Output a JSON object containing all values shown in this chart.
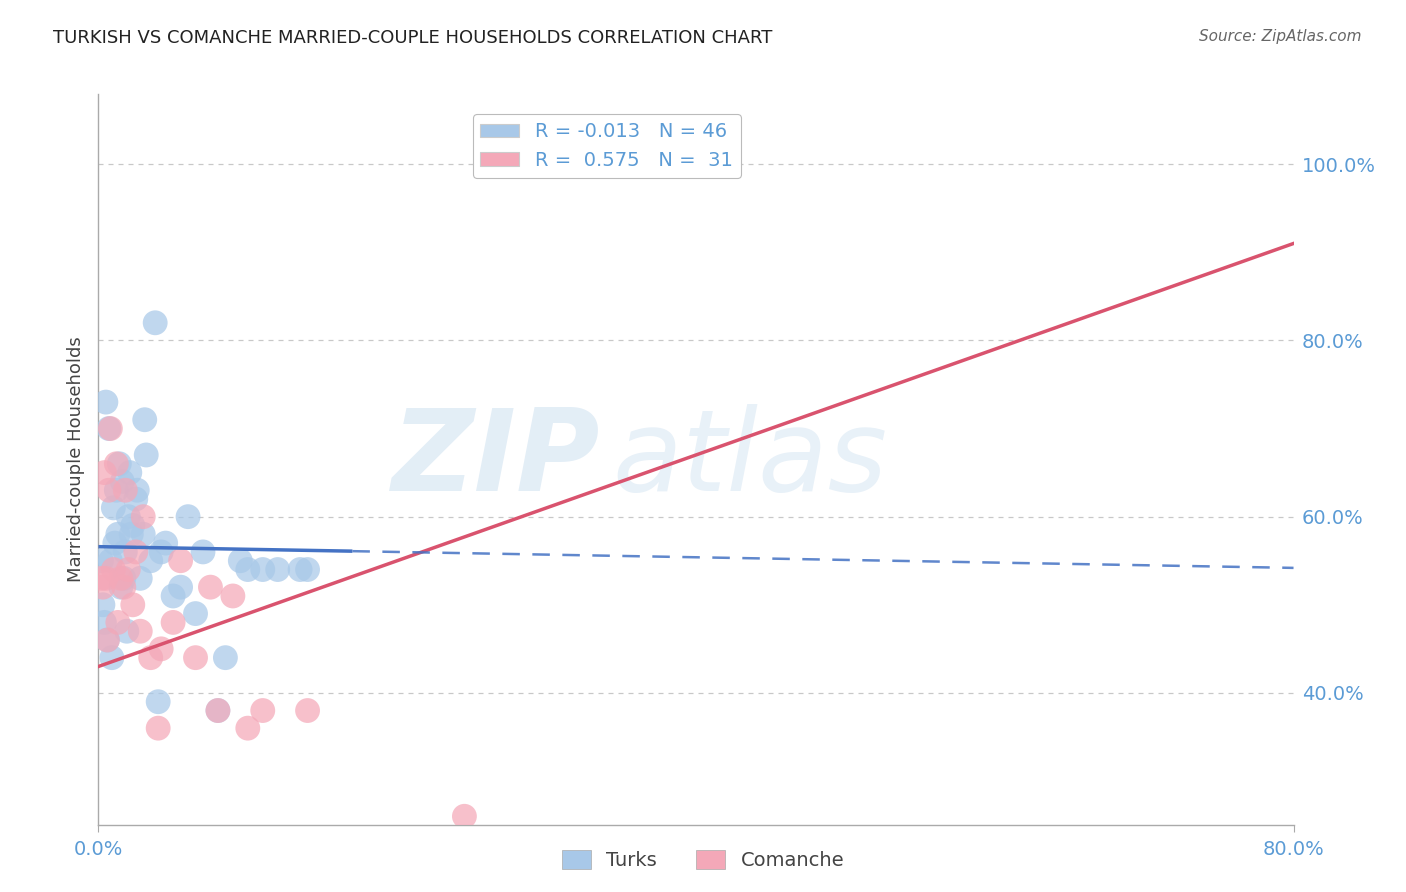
{
  "title": "TURKISH VS COMANCHE MARRIED-COUPLE HOUSEHOLDS CORRELATION CHART",
  "source": "Source: ZipAtlas.com",
  "ylabel": "Married-couple Households",
  "turks_R": -0.013,
  "turks_N": 46,
  "comanche_R": 0.575,
  "comanche_N": 31,
  "turks_color": "#a8c8e8",
  "comanche_color": "#f4a8b8",
  "turks_line_color": "#4472c4",
  "comanche_line_color": "#d9536e",
  "background_color": "#ffffff",
  "grid_color": "#c8c8c8",
  "axis_label_color": "#5b9bd5",
  "watermark_zip": "ZIP",
  "watermark_atlas": "atlas",
  "turks_x": [
    0.5,
    0.8,
    1.0,
    1.1,
    1.2,
    1.3,
    1.5,
    1.6,
    1.8,
    2.0,
    2.1,
    2.3,
    2.5,
    2.8,
    3.0,
    3.2,
    3.5,
    4.0,
    4.5,
    5.0,
    6.0,
    7.0,
    8.0,
    9.5,
    10.0,
    12.0,
    14.0,
    0.3,
    0.4,
    0.6,
    0.9,
    1.4,
    1.7,
    1.9,
    2.2,
    2.6,
    3.1,
    3.8,
    4.2,
    5.5,
    6.5,
    8.5,
    11.0,
    13.5,
    0.2,
    0.7
  ],
  "turks_y": [
    73,
    55,
    61,
    57,
    63,
    58,
    52,
    64,
    56,
    60,
    65,
    59,
    62,
    53,
    58,
    67,
    55,
    39,
    57,
    51,
    60,
    56,
    38,
    55,
    54,
    54,
    54,
    50,
    48,
    46,
    44,
    66,
    53,
    47,
    58,
    63,
    71,
    82,
    56,
    52,
    49,
    44,
    54,
    54,
    55,
    70
  ],
  "comanche_x": [
    0.3,
    0.5,
    0.7,
    1.0,
    1.2,
    1.5,
    1.7,
    2.0,
    2.3,
    2.8,
    3.5,
    4.2,
    5.0,
    6.5,
    7.5,
    9.0,
    11.0,
    14.0,
    0.4,
    0.8,
    1.3,
    1.8,
    2.5,
    3.0,
    4.0,
    5.5,
    8.0,
    10.0,
    0.2,
    0.6,
    24.5
  ],
  "comanche_y": [
    52,
    53,
    63,
    54,
    66,
    53,
    52,
    54,
    50,
    47,
    44,
    45,
    48,
    44,
    52,
    51,
    38,
    38,
    65,
    70,
    48,
    63,
    56,
    60,
    36,
    55,
    38,
    36,
    53,
    46,
    26
  ],
  "xlim": [
    0,
    80
  ],
  "ylim": [
    25,
    108
  ],
  "ytick_positions": [
    40,
    60,
    80,
    100
  ],
  "ytick_labels": [
    "40.0%",
    "60.0%",
    "80.0%",
    "100.0%"
  ],
  "xtick_positions": [
    0,
    80
  ],
  "xtick_labels": [
    "0.0%",
    "80.0%"
  ],
  "turks_line_solid_end": 17,
  "comanche_line_x0": 0,
  "comanche_line_x1": 80,
  "comanche_line_y0": 43,
  "comanche_line_y1": 91
}
